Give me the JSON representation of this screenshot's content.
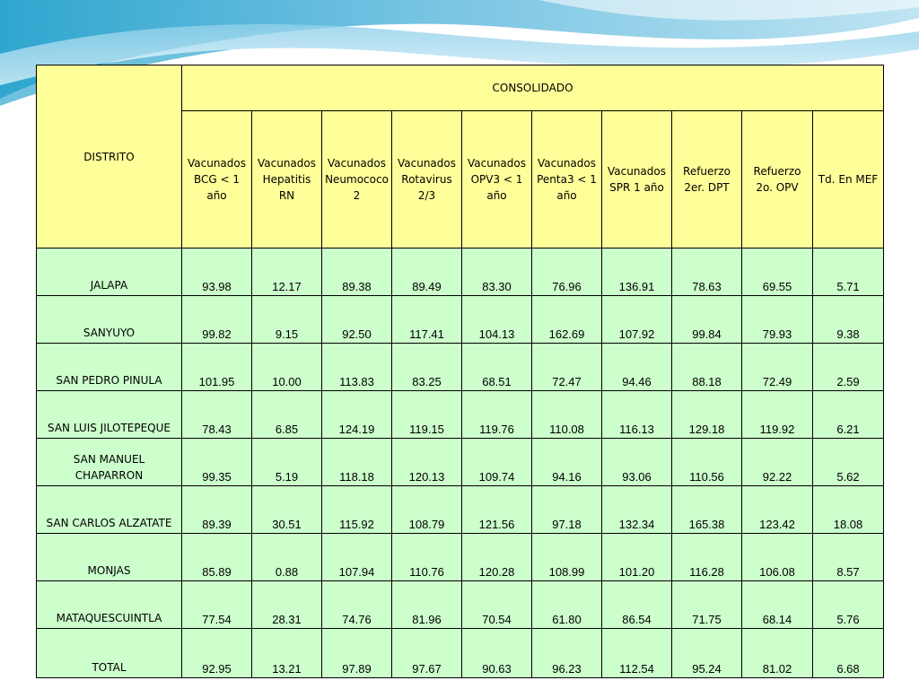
{
  "header": {
    "distrito": "DISTRITO",
    "consolidado": "CONSOLIDADO",
    "columns": [
      "Vacunados BCG < 1 año",
      "Vacunados Hepatitis RN",
      "Vacunados Neumococo 2",
      "Vacunados Rotavirus 2/3",
      "Vacunados OPV3 < 1 año",
      "Vacunados Penta3 < 1 año",
      "Vacunados SPR 1 año",
      "Refuerzo 2er. DPT",
      "Refuerzo 2o. OPV",
      "Td. En MEF"
    ]
  },
  "rows": [
    {
      "distrito": "JALAPA",
      "values": [
        "93.98",
        "12.17",
        "89.38",
        "89.49",
        "83.30",
        "76.96",
        "136.91",
        "78.63",
        "69.55",
        "5.71"
      ]
    },
    {
      "distrito": "SANYUYO",
      "values": [
        "99.82",
        "9.15",
        "92.50",
        "117.41",
        "104.13",
        "162.69",
        "107.92",
        "99.84",
        "79.93",
        "9.38"
      ]
    },
    {
      "distrito": "SAN PEDRO PINULA",
      "values": [
        "101.95",
        "10.00",
        "113.83",
        "83.25",
        "68.51",
        "72.47",
        "94.46",
        "88.18",
        "72.49",
        "2.59"
      ]
    },
    {
      "distrito": "SAN LUIS JILOTEPEQUE",
      "values": [
        "78.43",
        "6.85",
        "124.19",
        "119.15",
        "119.76",
        "110.08",
        "116.13",
        "129.18",
        "119.92",
        "6.21"
      ]
    },
    {
      "distrito": "SAN MANUEL CHAPARRON",
      "values": [
        "99.35",
        "5.19",
        "118.18",
        "120.13",
        "109.74",
        "94.16",
        "93.06",
        "110.56",
        "92.22",
        "5.62"
      ]
    },
    {
      "distrito": "SAN CARLOS ALZATATE",
      "values": [
        "89.39",
        "30.51",
        "115.92",
        "108.79",
        "121.56",
        "97.18",
        "132.34",
        "165.38",
        "123.42",
        "18.08"
      ]
    },
    {
      "distrito": "MONJAS",
      "values": [
        "85.89",
        "0.88",
        "107.94",
        "110.76",
        "120.28",
        "108.99",
        "101.20",
        "116.28",
        "106.08",
        "8.57"
      ]
    },
    {
      "distrito": "MATAQUESCUINTLA",
      "values": [
        "77.54",
        "28.31",
        "74.76",
        "81.96",
        "70.54",
        "61.80",
        "86.54",
        "71.75",
        "68.14",
        "5.76"
      ]
    },
    {
      "distrito": "TOTAL",
      "values": [
        "92.95",
        "13.21",
        "97.89",
        "97.67",
        "90.63",
        "96.23",
        "112.54",
        "95.24",
        "81.02",
        "6.68"
      ]
    }
  ],
  "colors": {
    "header_bg": "#ffff99",
    "body_bg": "#ccffcc",
    "wave_light": "#bfe4f2",
    "wave_mid": "#7cc6e4",
    "wave_dark": "#2fa6cf"
  }
}
